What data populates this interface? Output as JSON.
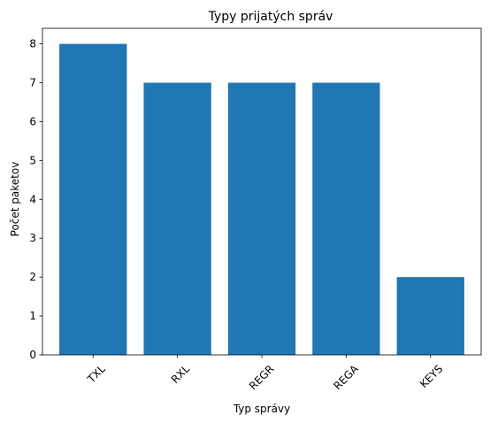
{
  "chart_data": {
    "type": "bar",
    "title": "Typy prijatých správ",
    "xlabel": "Typ správy",
    "ylabel": "Počet paketov",
    "categories": [
      "TXL",
      "RXL",
      "REGR",
      "REGA",
      "KEYS"
    ],
    "values": [
      8,
      7,
      7,
      7,
      2
    ],
    "ylim": [
      0,
      8.4
    ],
    "yticks": [
      0,
      1,
      2,
      3,
      4,
      5,
      6,
      7,
      8
    ],
    "bar_color": "#1f77b4",
    "grid": false,
    "xtick_rotation": -45
  }
}
